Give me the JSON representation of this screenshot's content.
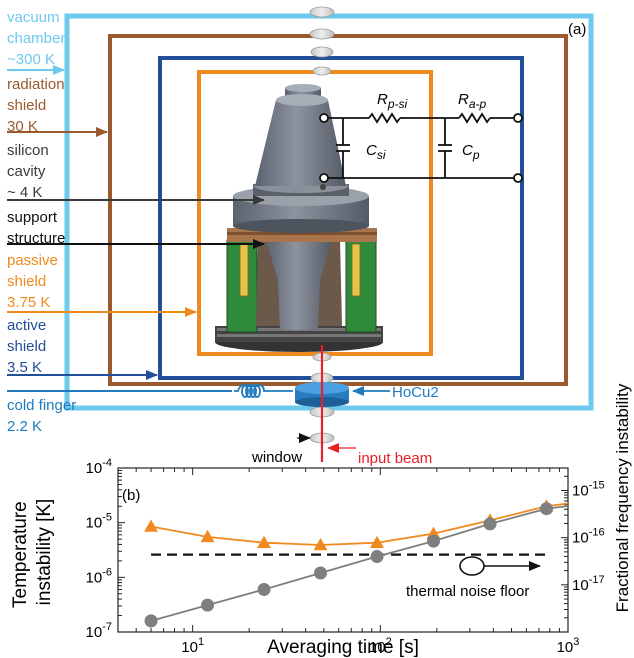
{
  "panel_a": {
    "label": "(a)",
    "layers": [
      {
        "name": "vacuum chamber",
        "temp": "~300 K",
        "color": "#6ec9ef"
      },
      {
        "name": "radiation shield",
        "temp": "30 K",
        "color": "#9b5a2e"
      },
      {
        "name": "silicon cavity",
        "temp": "~ 4 K",
        "color": "#3a3a3a"
      },
      {
        "name": "support structure",
        "temp": "",
        "color": "#111111"
      },
      {
        "name": "passive shield",
        "temp": "3.75 K",
        "color": "#f08a1e"
      },
      {
        "name": "active shield",
        "temp": "3.5 K",
        "color": "#234e9a"
      },
      {
        "name": "cold finger",
        "temp": "2.2 K",
        "color": "#1f7bbd"
      }
    ],
    "label_lines": {
      "vacuum": [
        "vacuum",
        "chamber",
        "~300 K"
      ],
      "radiation": [
        "radiation",
        "shield",
        "30 K"
      ],
      "silicon": [
        "silicon",
        "cavity",
        "~ 4 K"
      ],
      "support": [
        "support",
        "structure"
      ],
      "passive": [
        "passive",
        "shield",
        "3.75 K"
      ],
      "active": [
        "active",
        "shield",
        "3.5 K"
      ],
      "cold": [
        "cold finger",
        "2.2 K"
      ]
    },
    "circuit": {
      "r1_main": "R",
      "r1_sub": "p-si",
      "r2_main": "R",
      "r2_sub": "a-p",
      "c1_main": "C",
      "c1_sub": "si",
      "c2_main": "C",
      "c2_sub": "p"
    },
    "hocu2": "HoCu2",
    "window": "window",
    "input_beam": "input beam",
    "beam_color": "#e8202a"
  },
  "panel_b": {
    "label": "(b)",
    "ylabel_left": [
      "Temperature",
      "instability [K]"
    ],
    "ylabel_right": "Fractional frequency instability",
    "annotation": "thermal noise floor",
    "chart_data": {
      "type": "line",
      "xlabel": "Averaging time [s]",
      "xscale": "log",
      "xlim": [
        4,
        1000
      ],
      "xticks": [
        {
          "base": "10",
          "exp": "1"
        },
        {
          "base": "10",
          "exp": "2"
        },
        {
          "base": "10",
          "exp": "3"
        }
      ],
      "yscale": "log",
      "ylim": [
        1e-07,
        0.0001
      ],
      "yticks": [
        {
          "base": "10",
          "exp": "-7"
        },
        {
          "base": "10",
          "exp": "-6"
        },
        {
          "base": "10",
          "exp": "-5"
        },
        {
          "base": "10",
          "exp": "-4"
        }
      ],
      "y2scale": "log",
      "y2lim": [
        1e-18,
        3e-15
      ],
      "y2ticks": [
        {
          "base": "10",
          "exp": "-15"
        },
        {
          "base": "10",
          "exp": "-16"
        },
        {
          "base": "10",
          "exp": "-17"
        }
      ],
      "x": [
        6,
        12,
        24,
        48,
        96,
        192,
        384,
        768
      ],
      "series": [
        {
          "marker": "triangle",
          "color": "#f08a1e",
          "values": [
            8.5e-06,
            5.5e-06,
            4.3e-06,
            3.9e-06,
            4.3e-06,
            6.3e-06,
            1.1e-05,
            2e-05
          ]
        },
        {
          "marker": "circle",
          "color": "#7f7f7f",
          "values": [
            1.6e-07,
            3.1e-07,
            6e-07,
            1.2e-06,
            2.4e-06,
            4.6e-06,
            9.5e-06,
            1.8e-05
          ]
        }
      ],
      "thermal_noise_floor": 2.6e-06,
      "grid": false
    }
  }
}
